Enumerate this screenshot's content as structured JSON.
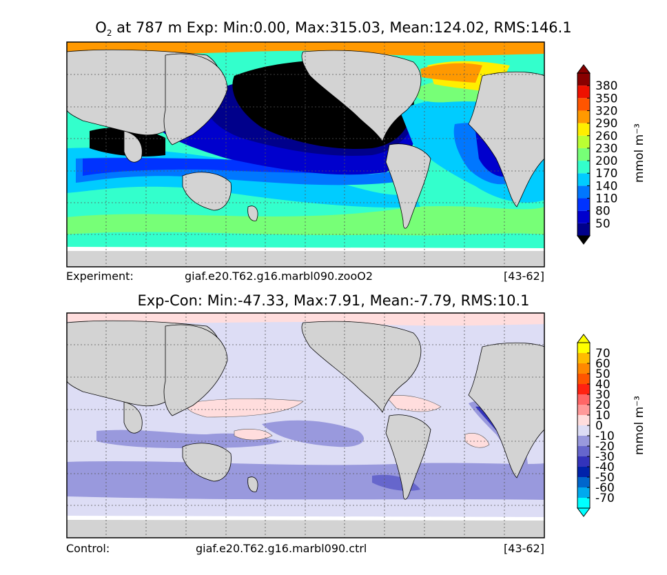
{
  "top_panel": {
    "title_species": "O",
    "title_subscript": "2",
    "title_rest": " at 787 m Exp: Min:0.00, Max:315.03, Mean:124.02, RMS:146.1",
    "footer_label": "Experiment:",
    "footer_case": "giaf.e20.T62.g16.marbl090.zooO2",
    "footer_years": "[43-62]",
    "colorbar_ticks": [
      "380",
      "350",
      "320",
      "290",
      "260",
      "230",
      "200",
      "170",
      "140",
      "110",
      "80",
      "50"
    ],
    "colorbar_units": "mmol m⁻³",
    "colors": [
      "#00008b",
      "#0000cd",
      "#0033ff",
      "#0077ff",
      "#00ccff",
      "#33ffcc",
      "#77ff77",
      "#bbff33",
      "#ffee00",
      "#ff9900",
      "#ff5500",
      "#ee1100",
      "#880000"
    ],
    "deepest_color": "#000000",
    "land_color": "#d3d3d3"
  },
  "bottom_panel": {
    "title": "Exp-Con: Min:-47.33, Max:7.91, Mean:-7.79, RMS:10.1",
    "footer_label": "Control:",
    "footer_case": "giaf.e20.T62.g16.marbl090.ctrl",
    "footer_years": "[43-62]",
    "colorbar_ticks": [
      "70",
      "60",
      "50",
      "40",
      "30",
      "20",
      "10",
      "0",
      "-10",
      "-20",
      "-30",
      "-40",
      "-50",
      "-60",
      "-70"
    ],
    "colorbar_units": "mmol m⁻³",
    "colors": [
      "#00ffff",
      "#00aaee",
      "#0066cc",
      "#0022aa",
      "#3333bb",
      "#6666cc",
      "#9999dd",
      "#ddddf5",
      "#ffdddd",
      "#ff9999",
      "#ff6666",
      "#ff2211",
      "#ff5500",
      "#ff8800",
      "#ffbb00",
      "#ffff00"
    ],
    "land_color": "#d3d3d3"
  }
}
